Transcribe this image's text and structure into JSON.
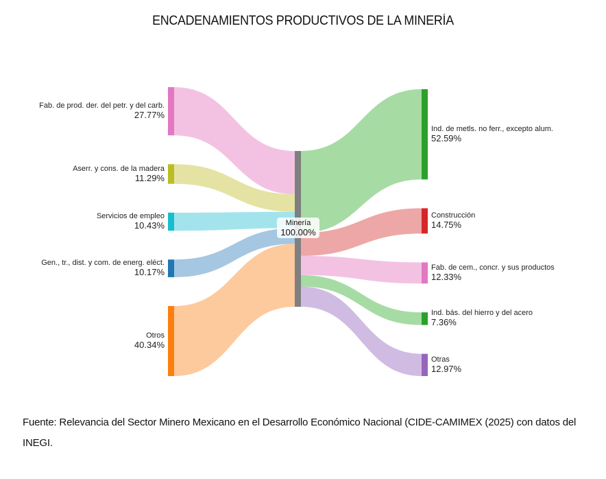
{
  "title": "ENCADENAMIENTOS PRODUCTIVOS DE LA MINERÍA",
  "source": "Fuente: Relevancia del Sector Minero Mexicano en el Desarrollo Económico Nacional (CIDE-CAMIMEX (2025) con datos del INEGI.",
  "chart_data": {
    "type": "sankey",
    "center": {
      "name": "Minería",
      "value": "100.00%",
      "color": "#7f7f7f"
    },
    "sources": [
      {
        "name": "Fab. de prod. der. del petr. y del carb.",
        "value": 27.77,
        "label": "27.77%",
        "color": "#e377c2",
        "link_color": "#f2bde0"
      },
      {
        "name": "Aserr. y cons. de la madera",
        "value": 11.29,
        "label": "11.29%",
        "color": "#bcbd22",
        "link_color": "#e2e19c"
      },
      {
        "name": "Servicios de empleo",
        "value": 10.43,
        "label": "10.43%",
        "color": "#17becf",
        "link_color": "#9be2ea"
      },
      {
        "name": "Gen., tr., dist. y com. de energ. eléct.",
        "value": 10.17,
        "label": "10.17%",
        "color": "#1f77b4",
        "link_color": "#9dc2df"
      },
      {
        "name": "Otros",
        "value": 40.34,
        "label": "40.34%",
        "color": "#ff7f0e",
        "link_color": "#fdc695"
      }
    ],
    "targets": [
      {
        "name": "Ind. de metls. no ferr., excepto alum.",
        "value": 52.59,
        "label": "52.59%",
        "color": "#2ca02c",
        "link_color": "#9fd89c"
      },
      {
        "name": "Construcción",
        "value": 14.75,
        "label": "14.75%",
        "color": "#d62728",
        "link_color": "#ec9f9f"
      },
      {
        "name": "Fab. de cem., concr. y sus productos",
        "value": 12.33,
        "label": "12.33%",
        "color": "#e377c2",
        "link_color": "#f2bde0"
      },
      {
        "name": "Ind. bás. del hierro y del acero",
        "value": 7.36,
        "label": "7.36%",
        "color": "#2ca02c",
        "link_color": "#9fd89c"
      },
      {
        "name": "Otras",
        "value": 12.97,
        "label": "12.97%",
        "color": "#9467bd",
        "link_color": "#ccb6df"
      }
    ]
  }
}
